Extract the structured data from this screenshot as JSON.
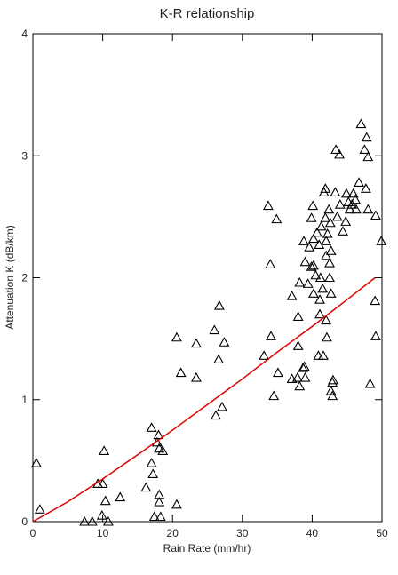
{
  "chart_data": {
    "type": "scatter",
    "title": "K-R relationship",
    "x_label": "Rain Rate (mm/hr)",
    "y_label": "Attenuation K (dB/km)",
    "xlim": [
      0,
      50
    ],
    "ylim": [
      0,
      4
    ],
    "xticks": [
      0,
      10,
      20,
      30,
      40,
      50
    ],
    "yticks": [
      0,
      1,
      2,
      3,
      4
    ],
    "grid": false,
    "series": [
      {
        "type": "scatter",
        "marker": "triangle",
        "color": "#000000",
        "x": [
          0.5,
          1.0,
          7.4,
          8.5,
          9.3,
          10.0,
          10.2,
          9.9,
          10.4,
          10.8,
          12.5,
          16.2,
          17.0,
          17.0,
          17.2,
          17.8,
          18.1,
          18.0,
          18.6,
          18.1,
          18.1,
          17.4,
          18.3,
          20.6,
          20.6,
          21.2,
          23.4,
          23.4,
          26.0,
          26.2,
          26.7,
          26.6,
          27.4,
          27.1,
          33.1,
          33.7,
          34.0,
          34.1,
          34.5,
          34.9,
          35.1,
          37.1,
          37.1,
          38.0,
          38.0,
          38.2,
          38.2,
          37.9,
          38.7,
          38.9,
          39.0,
          38.8,
          39.0,
          39.4,
          39.6,
          39.9,
          39.9,
          40.1,
          40.2,
          40.2,
          40.2,
          40.5,
          40.7,
          40.9,
          41.0,
          41.1,
          41.1,
          41.2,
          41.3,
          41.5,
          41.6,
          41.7,
          41.9,
          42.0,
          41.9,
          42.0,
          42.0,
          42.1,
          42.2,
          42.4,
          42.5,
          42.5,
          42.6,
          42.7,
          42.7,
          42.7,
          42.9,
          42.9,
          43.0,
          43.3,
          43.4,
          43.6,
          43.9,
          44.0,
          44.4,
          44.8,
          44.9,
          45.2,
          45.4,
          45.7,
          45.9,
          46.2,
          46.3,
          46.7,
          47.0,
          47.5,
          47.8,
          48.0,
          47.7,
          48.0,
          48.3,
          49.1,
          49.0,
          49.1,
          49.9
        ],
        "values": [
          0.48,
          0.1,
          0.0,
          0.0,
          0.31,
          0.31,
          0.58,
          0.05,
          0.17,
          0.0,
          0.2,
          0.28,
          0.77,
          0.48,
          0.39,
          0.65,
          0.6,
          0.71,
          0.58,
          0.22,
          0.16,
          0.04,
          0.04,
          0.14,
          1.51,
          1.22,
          1.46,
          1.18,
          1.57,
          0.87,
          1.77,
          1.33,
          1.47,
          0.94,
          1.36,
          2.59,
          2.11,
          1.52,
          1.03,
          2.48,
          1.22,
          1.85,
          1.17,
          1.68,
          1.44,
          1.96,
          1.11,
          1.18,
          1.26,
          1.27,
          1.18,
          2.3,
          2.13,
          1.95,
          2.25,
          2.09,
          2.49,
          2.59,
          2.32,
          1.87,
          2.1,
          2.02,
          2.37,
          1.36,
          2.27,
          1.7,
          1.82,
          2.0,
          2.42,
          1.91,
          1.36,
          2.7,
          2.73,
          2.18,
          2.49,
          2.3,
          1.65,
          1.51,
          2.36,
          2.56,
          2.12,
          2.0,
          2.45,
          2.22,
          1.87,
          1.07,
          1.14,
          1.03,
          1.16,
          2.7,
          3.05,
          2.5,
          3.01,
          2.6,
          2.38,
          2.46,
          2.69,
          2.62,
          2.56,
          2.6,
          2.69,
          2.64,
          2.56,
          2.78,
          3.26,
          3.05,
          3.15,
          2.99,
          2.73,
          2.56,
          1.13,
          2.51,
          1.81,
          1.52,
          2.3
        ]
      },
      {
        "type": "line",
        "color": "#e00000",
        "x": [
          0,
          5,
          10,
          15,
          20,
          25,
          30,
          35,
          40,
          45,
          49
        ],
        "values": [
          0,
          0.163,
          0.35,
          0.548,
          0.75,
          0.96,
          1.17,
          1.39,
          1.6,
          1.82,
          2.0
        ]
      }
    ]
  }
}
